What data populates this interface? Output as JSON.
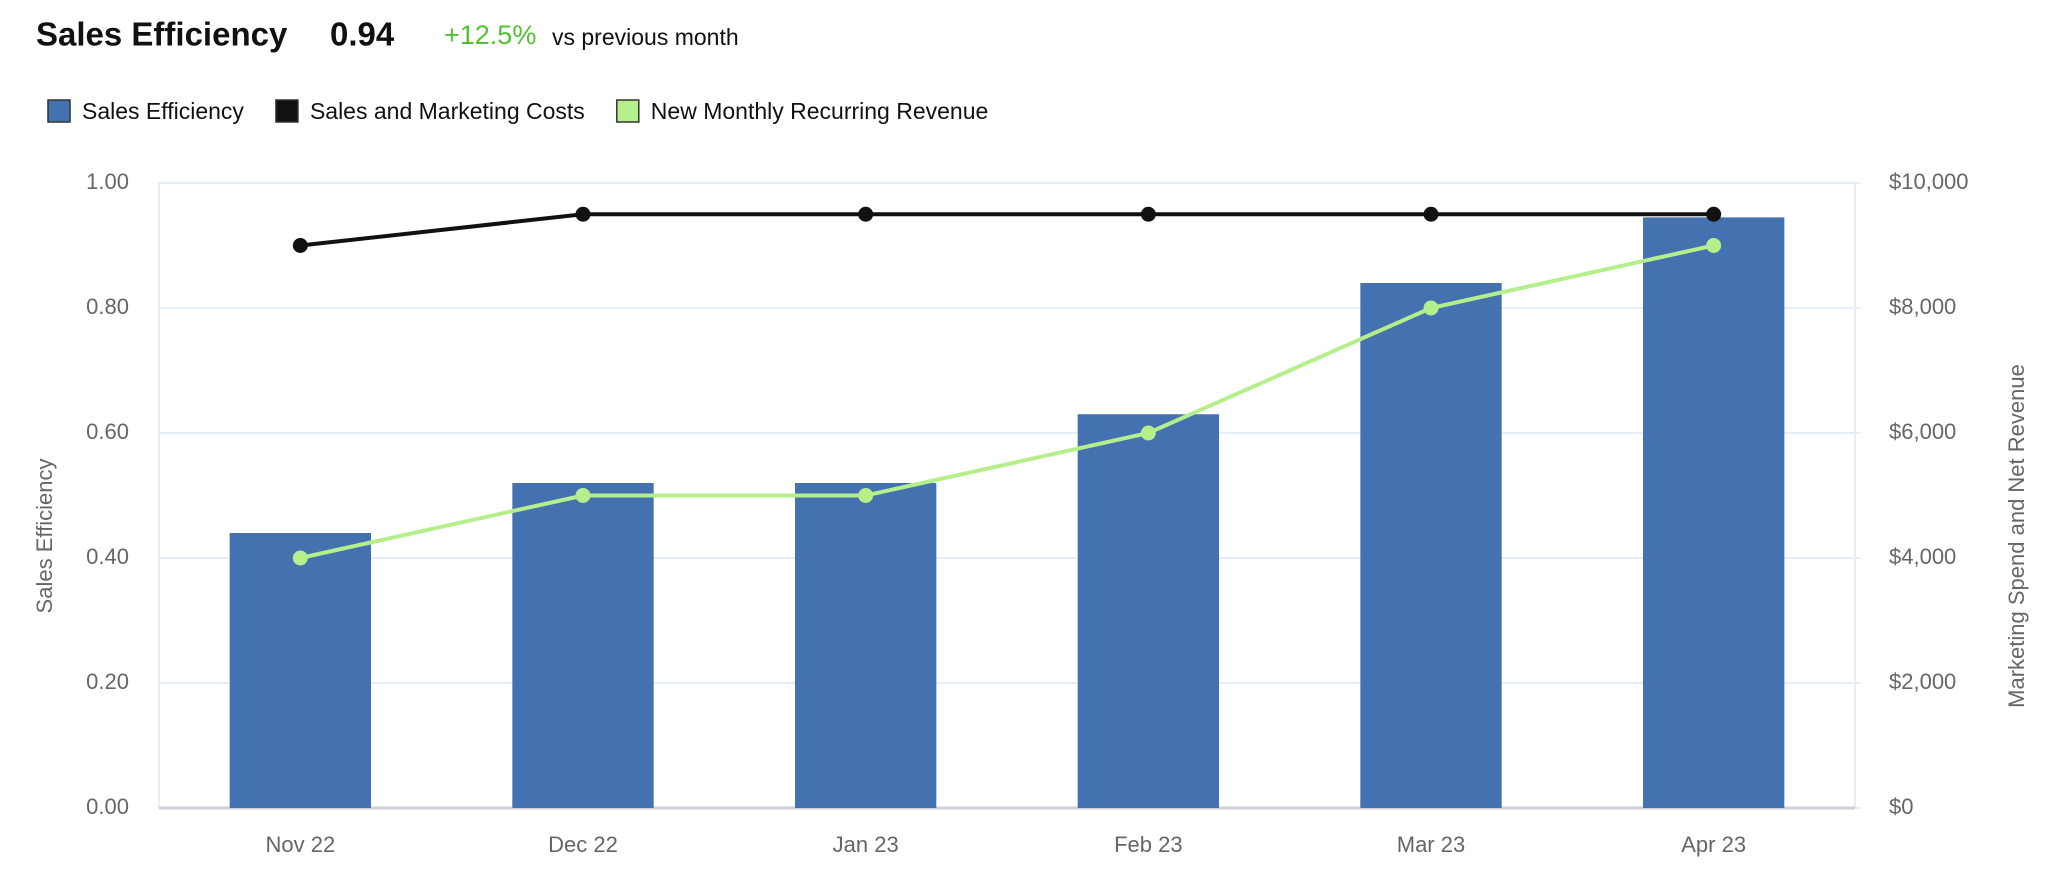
{
  "chart_data": {
    "type": "bar-line",
    "title": "Sales Efficiency",
    "kpi": "0.94",
    "change": "+12.5%",
    "change_label": "vs previous month",
    "categories": [
      "Nov 22",
      "Dec 22",
      "Jan 23",
      "Feb 23",
      "Mar 23",
      "Apr 23"
    ],
    "series": [
      {
        "name": "Sales Efficiency",
        "type": "bar",
        "color": "#4472b0",
        "values": [
          0.44,
          0.52,
          0.52,
          0.63,
          0.84,
          0.945
        ]
      },
      {
        "name": "Sales and Marketing Costs",
        "type": "line",
        "axis": "y2",
        "color": "#111111",
        "values": [
          9000,
          9500,
          9500,
          9500,
          9500,
          9500
        ]
      },
      {
        "name": "New Monthly Recurring Revenue",
        "type": "line",
        "axis": "y2",
        "color": "#b5ef8c",
        "values": [
          4000,
          5000,
          5000,
          6000,
          8000,
          9000
        ]
      }
    ],
    "ylabel": "Sales Efficiency",
    "y2label": "Marketing Spend and Net Revenue",
    "ylim": [
      0,
      1
    ],
    "yticks": [
      {
        "value": 0,
        "label": "0.00"
      },
      {
        "value": 0.2,
        "label": "0.20"
      },
      {
        "value": 0.4,
        "label": "0.40"
      },
      {
        "value": 0.6,
        "label": "0.60"
      },
      {
        "value": 0.8,
        "label": "0.80"
      },
      {
        "value": 1,
        "label": "1.00"
      }
    ],
    "y2lim": [
      0,
      10000
    ],
    "y2ticks": [
      {
        "value": 0,
        "label": "$0"
      },
      {
        "value": 2000,
        "label": "$2,000"
      },
      {
        "value": 4000,
        "label": "$4,000"
      },
      {
        "value": 6000,
        "label": "$6,000"
      },
      {
        "value": 8000,
        "label": "$8,000"
      },
      {
        "value": 10000,
        "label": "$10,000"
      }
    ],
    "grid": true
  }
}
